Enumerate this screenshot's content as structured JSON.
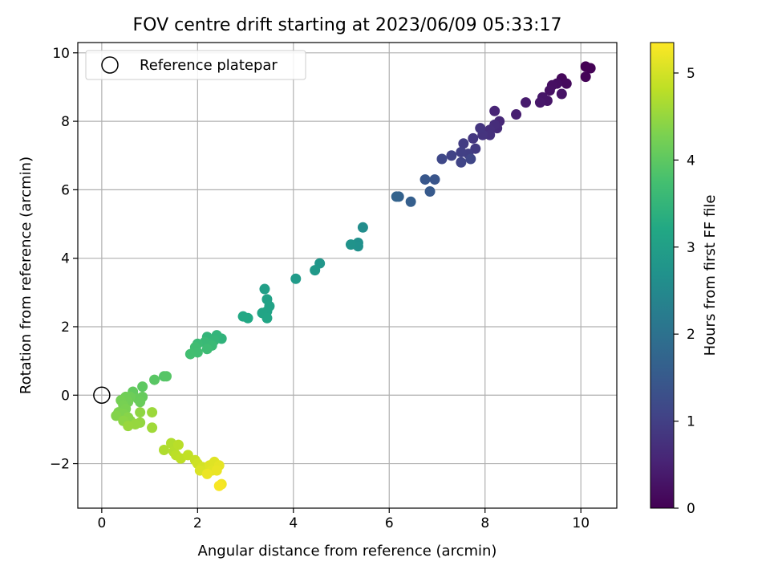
{
  "chart_data": {
    "type": "scatter",
    "title": "FOV centre drift starting at 2023/06/09 05:33:17",
    "xlabel": "Angular distance from reference (arcmin)",
    "ylabel": "Rotation from reference (arcmin)",
    "xlim": [
      -0.5,
      10.75
    ],
    "ylim": [
      -3.3,
      10.3
    ],
    "xticks": [
      0,
      2,
      4,
      6,
      8,
      10
    ],
    "yticks": [
      -2,
      0,
      2,
      4,
      6,
      8,
      10
    ],
    "grid": true,
    "legend": {
      "position": "top-left",
      "entries": [
        "Reference platepar"
      ]
    },
    "reference_point": {
      "x": 0,
      "y": 0,
      "label": "Reference platepar"
    },
    "colorbar": {
      "label": "Hours from first FF file",
      "min": 0,
      "max": 5.35,
      "ticks": [
        0,
        1,
        2,
        3,
        4,
        5
      ],
      "colormap": "viridis"
    },
    "series": [
      {
        "color_by": "hours",
        "points": [
          [
            10.1,
            9.6,
            0.0
          ],
          [
            10.2,
            9.55,
            0.02
          ],
          [
            10.1,
            9.3,
            0.05
          ],
          [
            9.6,
            9.25,
            0.1
          ],
          [
            9.7,
            9.1,
            0.15
          ],
          [
            9.5,
            9.1,
            0.2
          ],
          [
            9.4,
            9.05,
            0.22
          ],
          [
            9.35,
            8.9,
            0.25
          ],
          [
            9.6,
            8.8,
            0.28
          ],
          [
            9.3,
            8.6,
            0.3
          ],
          [
            9.2,
            8.7,
            0.32
          ],
          [
            9.15,
            8.55,
            0.35
          ],
          [
            8.85,
            8.55,
            0.4
          ],
          [
            8.65,
            8.2,
            0.45
          ],
          [
            8.2,
            8.3,
            0.55
          ],
          [
            8.3,
            8.0,
            0.6
          ],
          [
            8.25,
            7.8,
            0.65
          ],
          [
            8.2,
            7.9,
            0.68
          ],
          [
            8.1,
            7.75,
            0.72
          ],
          [
            8.1,
            7.6,
            0.75
          ],
          [
            7.95,
            7.6,
            0.8
          ],
          [
            7.9,
            7.8,
            0.82
          ],
          [
            7.75,
            7.5,
            0.85
          ],
          [
            7.8,
            7.2,
            0.9
          ],
          [
            7.55,
            7.35,
            0.95
          ],
          [
            7.65,
            7.05,
            0.98
          ],
          [
            7.5,
            7.1,
            1.0
          ],
          [
            7.3,
            7.0,
            1.05
          ],
          [
            7.5,
            6.8,
            1.08
          ],
          [
            7.7,
            6.9,
            1.1
          ],
          [
            7.1,
            6.9,
            1.15
          ],
          [
            6.95,
            6.3,
            1.4
          ],
          [
            6.75,
            6.3,
            1.45
          ],
          [
            6.85,
            5.95,
            1.5
          ],
          [
            6.45,
            5.65,
            1.6
          ],
          [
            6.2,
            5.8,
            1.65
          ],
          [
            6.15,
            5.8,
            1.7
          ],
          [
            5.45,
            4.9,
            2.6
          ],
          [
            5.35,
            4.45,
            2.65
          ],
          [
            5.35,
            4.35,
            2.68
          ],
          [
            5.2,
            4.4,
            2.72
          ],
          [
            4.55,
            3.85,
            2.8
          ],
          [
            4.45,
            3.65,
            2.85
          ],
          [
            4.05,
            3.4,
            2.9
          ],
          [
            3.4,
            3.1,
            3.0
          ],
          [
            3.45,
            2.8,
            3.05
          ],
          [
            3.5,
            2.6,
            3.08
          ],
          [
            3.45,
            2.45,
            3.1
          ],
          [
            3.35,
            2.4,
            3.12
          ],
          [
            3.45,
            2.25,
            3.15
          ],
          [
            3.05,
            2.25,
            3.2
          ],
          [
            2.95,
            2.3,
            3.22
          ],
          [
            2.5,
            1.65,
            3.45
          ],
          [
            2.4,
            1.75,
            3.48
          ],
          [
            2.2,
            1.7,
            3.5
          ],
          [
            2.35,
            1.6,
            3.52
          ],
          [
            2.25,
            1.5,
            3.55
          ],
          [
            2.15,
            1.55,
            3.58
          ],
          [
            2.3,
            1.45,
            3.6
          ],
          [
            2.0,
            1.5,
            3.62
          ],
          [
            2.2,
            1.35,
            3.65
          ],
          [
            1.95,
            1.4,
            3.68
          ],
          [
            2.0,
            1.25,
            3.7
          ],
          [
            1.85,
            1.2,
            3.72
          ],
          [
            1.3,
            0.55,
            3.9
          ],
          [
            1.35,
            0.55,
            3.92
          ],
          [
            1.1,
            0.45,
            3.95
          ],
          [
            0.85,
            0.25,
            4.0
          ],
          [
            0.65,
            0.1,
            4.05
          ],
          [
            0.85,
            -0.05,
            4.08
          ],
          [
            0.75,
            -0.1,
            4.1
          ],
          [
            0.8,
            -0.2,
            4.12
          ],
          [
            0.6,
            -0.05,
            4.15
          ],
          [
            0.5,
            -0.05,
            4.18
          ],
          [
            0.55,
            -0.2,
            4.2
          ],
          [
            0.4,
            -0.15,
            4.22
          ],
          [
            0.45,
            -0.3,
            4.25
          ],
          [
            0.5,
            -0.4,
            4.28
          ],
          [
            0.35,
            -0.5,
            4.3
          ],
          [
            0.45,
            -0.55,
            4.32
          ],
          [
            0.3,
            -0.6,
            4.35
          ],
          [
            0.55,
            -0.65,
            4.38
          ],
          [
            0.6,
            -0.75,
            4.4
          ],
          [
            0.45,
            -0.75,
            4.42
          ],
          [
            0.8,
            -0.5,
            4.45
          ],
          [
            0.8,
            -0.8,
            4.48
          ],
          [
            0.7,
            -0.85,
            4.5
          ],
          [
            0.55,
            -0.9,
            4.52
          ],
          [
            1.05,
            -0.5,
            4.55
          ],
          [
            1.05,
            -0.95,
            4.58
          ],
          [
            1.3,
            -1.6,
            4.7
          ],
          [
            1.45,
            -1.4,
            4.72
          ],
          [
            1.5,
            -1.65,
            4.75
          ],
          [
            1.6,
            -1.45,
            4.78
          ],
          [
            1.55,
            -1.75,
            4.8
          ],
          [
            1.65,
            -1.85,
            4.82
          ],
          [
            1.8,
            -1.75,
            4.85
          ],
          [
            1.95,
            -1.9,
            4.9
          ],
          [
            2.0,
            -2.0,
            4.95
          ],
          [
            2.1,
            -2.1,
            5.0
          ],
          [
            2.15,
            -2.2,
            5.02
          ],
          [
            2.05,
            -2.2,
            5.05
          ],
          [
            2.25,
            -2.05,
            5.08
          ],
          [
            2.35,
            -1.95,
            5.1
          ],
          [
            2.3,
            -2.2,
            5.12
          ],
          [
            2.45,
            -2.05,
            5.15
          ],
          [
            2.4,
            -2.2,
            5.18
          ],
          [
            2.2,
            -2.3,
            5.2
          ],
          [
            2.5,
            -2.6,
            5.25
          ],
          [
            2.45,
            -2.65,
            5.3
          ]
        ]
      }
    ]
  }
}
